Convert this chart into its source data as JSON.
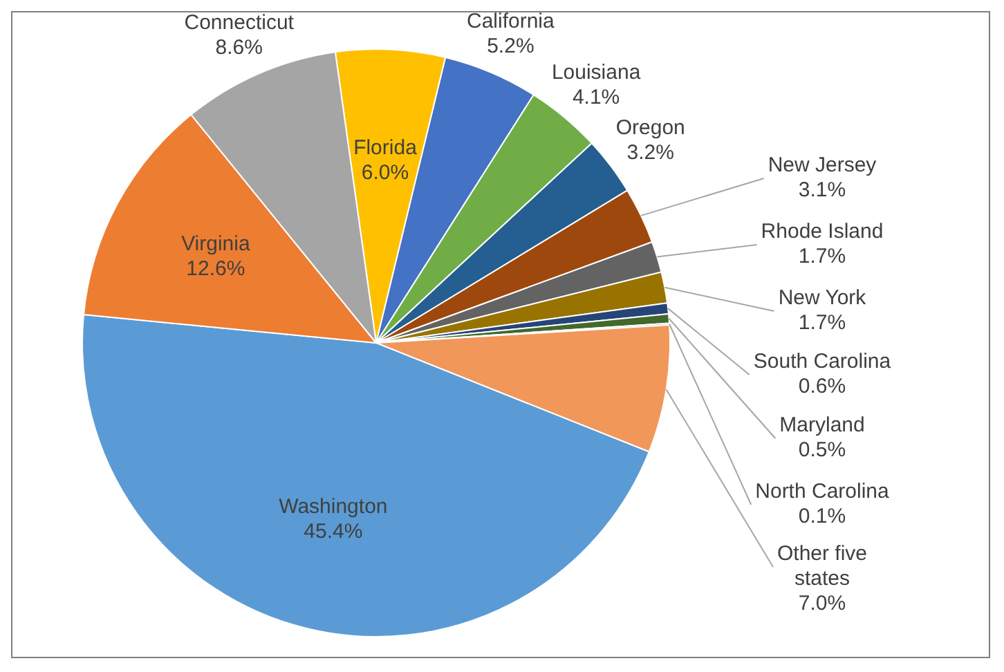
{
  "chart_data": {
    "type": "pie",
    "categories": [
      "Florida",
      "California",
      "Louisiana",
      "Oregon",
      "New Jersey",
      "Rhode Island",
      "New York",
      "South Carolina",
      "Maryland",
      "North Carolina",
      "Other five states",
      "Washington",
      "Virginia",
      "Connecticut"
    ],
    "values": [
      6.0,
      5.2,
      4.1,
      3.2,
      3.1,
      1.7,
      1.7,
      0.6,
      0.5,
      0.1,
      7.0,
      45.4,
      12.6,
      8.6
    ],
    "colors": [
      "#ffc000",
      "#4472c4",
      "#70ad47",
      "#255e91",
      "#9e480e",
      "#636363",
      "#997300",
      "#264478",
      "#43682b",
      "#698ed0",
      "#f1975a",
      "#5b9bd5",
      "#ed7d31",
      "#a5a5a5"
    ],
    "value_labels": [
      "6.0%",
      "5.2%",
      "4.1%",
      "3.2%",
      "3.1%",
      "1.7%",
      "1.7%",
      "0.6%",
      "0.5%",
      "0.1%",
      "7.0%",
      "45.4%",
      "12.6%",
      "8.6%"
    ]
  }
}
